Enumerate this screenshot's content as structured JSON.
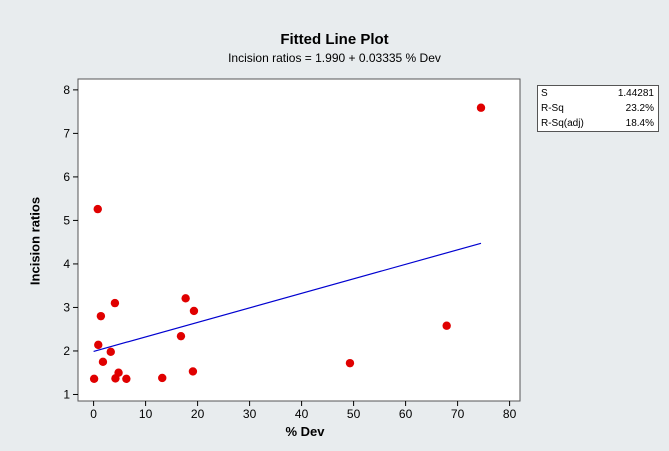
{
  "chart_data": {
    "type": "scatter",
    "title": "Fitted Line Plot",
    "subtitle": "Incision ratios =  1.990 + 0.03335 % Dev",
    "xlabel": "% Dev",
    "ylabel": "Incision ratios",
    "xlim": [
      -3,
      82
    ],
    "ylim": [
      0.85,
      8.25
    ],
    "x_ticks": [
      0,
      10,
      20,
      30,
      40,
      50,
      60,
      70,
      80
    ],
    "y_ticks": [
      1,
      2,
      3,
      4,
      5,
      6,
      7,
      8
    ],
    "grid": false,
    "legend": "none",
    "points": [
      {
        "x": 0.1,
        "y": 1.36
      },
      {
        "x": 0.8,
        "y": 5.26
      },
      {
        "x": 0.9,
        "y": 2.14
      },
      {
        "x": 1.4,
        "y": 2.8
      },
      {
        "x": 1.8,
        "y": 1.75
      },
      {
        "x": 3.3,
        "y": 1.98
      },
      {
        "x": 4.1,
        "y": 3.1
      },
      {
        "x": 4.2,
        "y": 1.37
      },
      {
        "x": 4.8,
        "y": 1.5
      },
      {
        "x": 6.3,
        "y": 1.36
      },
      {
        "x": 13.2,
        "y": 1.38
      },
      {
        "x": 16.8,
        "y": 2.34
      },
      {
        "x": 17.7,
        "y": 3.21
      },
      {
        "x": 19.1,
        "y": 1.53
      },
      {
        "x": 19.3,
        "y": 2.92
      },
      {
        "x": 49.3,
        "y": 1.72
      },
      {
        "x": 67.9,
        "y": 2.58
      },
      {
        "x": 74.5,
        "y": 7.59
      }
    ],
    "fit_line": {
      "intercept": 1.99,
      "slope": 0.03335,
      "x_range": [
        0,
        74.5
      ]
    },
    "colors": {
      "points": "#e00000",
      "fit_line": "#0000d0",
      "background": "#e8ecee",
      "plot_area": "#ffffff"
    }
  },
  "stats": [
    {
      "label": "S",
      "value": "1.44281"
    },
    {
      "label": "R-Sq",
      "value": "23.2%"
    },
    {
      "label": "R-Sq(adj)",
      "value": "18.4%"
    }
  ]
}
